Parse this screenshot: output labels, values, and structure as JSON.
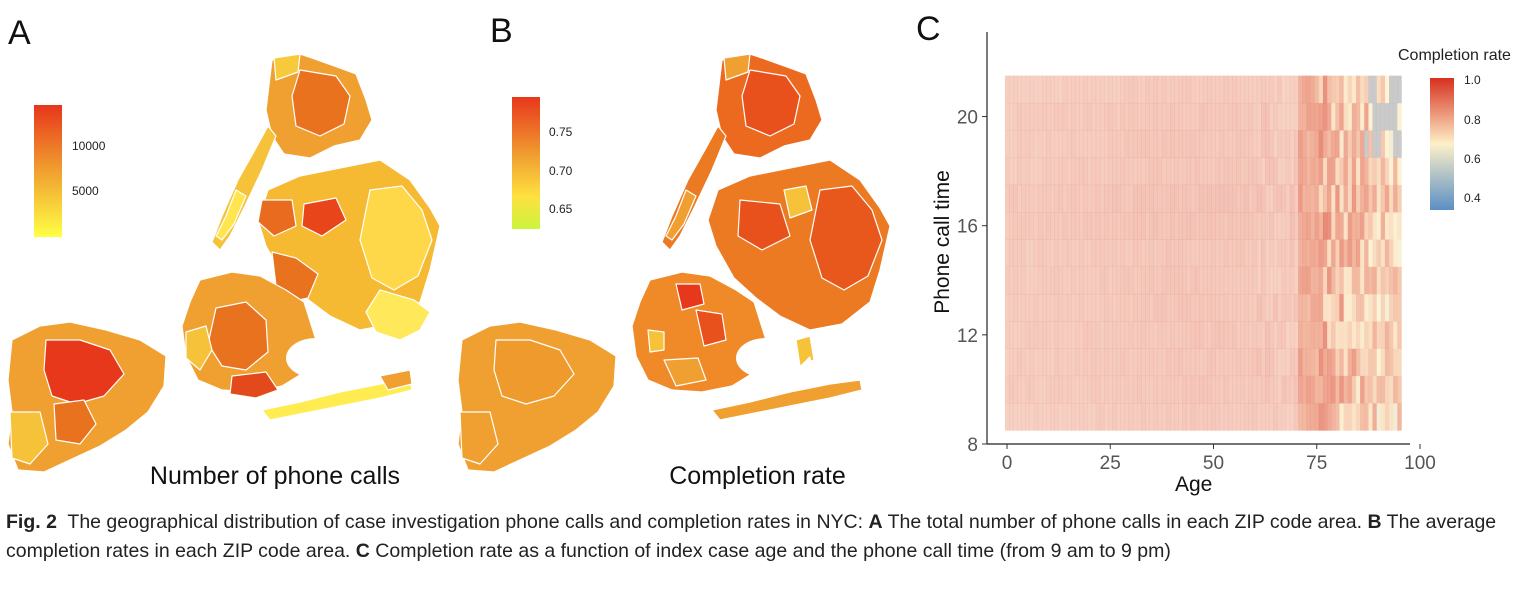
{
  "panels": {
    "a": {
      "label": "A",
      "caption": "Number of phone calls",
      "legend_ticks": [
        "10000",
        "5000"
      ],
      "legend_colors": [
        "#e8361c",
        "#ffff44"
      ]
    },
    "b": {
      "label": "B",
      "caption": "Completion rate",
      "legend_ticks": [
        "0.75",
        "0.70",
        "0.65"
      ],
      "legend_colors": [
        "#e8361c",
        "#ccf53c"
      ]
    },
    "c": {
      "label": "C",
      "legend_title": "Completion rate",
      "legend_ticks": [
        "1.0",
        "0.8",
        "0.6",
        "0.4"
      ],
      "legend_colors": [
        "#d7301f",
        "#fdf0c8",
        "#5a8fc4"
      ]
    }
  },
  "chart_data": {
    "type": "heatmap",
    "xlabel": "Age",
    "ylabel": "Phone call time",
    "x_ticks": [
      "0",
      "25",
      "50",
      "75",
      "100"
    ],
    "y_ticks": [
      "8",
      "12",
      "16",
      "20"
    ],
    "xlim": [
      0,
      100
    ],
    "ylim": [
      8,
      22
    ],
    "x_range": [
      0,
      95
    ],
    "y_range": [
      9,
      21
    ],
    "color_scale": {
      "min": 0.4,
      "max": 1.0,
      "low_color": "#5a8fc4",
      "mid_color": "#fdf0c8",
      "high_color": "#d7301f"
    },
    "legend_title": "Completion rate",
    "missing_color": "#b8b8b8",
    "rows": [
      {
        "hour": 9,
        "base": 0.84
      },
      {
        "hour": 10,
        "base": 0.85
      },
      {
        "hour": 11,
        "base": 0.85
      },
      {
        "hour": 12,
        "base": 0.85
      },
      {
        "hour": 13,
        "base": 0.85
      },
      {
        "hour": 14,
        "base": 0.85
      },
      {
        "hour": 15,
        "base": 0.85
      },
      {
        "hour": 16,
        "base": 0.86
      },
      {
        "hour": 17,
        "base": 0.86
      },
      {
        "hour": 18,
        "base": 0.85
      },
      {
        "hour": 19,
        "base": 0.85
      },
      {
        "hour": 20,
        "base": 0.85
      },
      {
        "hour": 21,
        "base": 0.84
      }
    ]
  },
  "figure_caption": {
    "prefix": "Fig. 2",
    "intro": "The geographical distribution of case investigation phone calls and completion rates in NYC:",
    "a_label": "A",
    "a_text": "The total number of phone calls in each ZIP code area.",
    "b_label": "B",
    "b_text": "The average completion rates in each ZIP code area.",
    "c_label": "C",
    "c_text": "Completion rate as a function of index case age and the phone call time (from 9 am to 9 pm)"
  }
}
